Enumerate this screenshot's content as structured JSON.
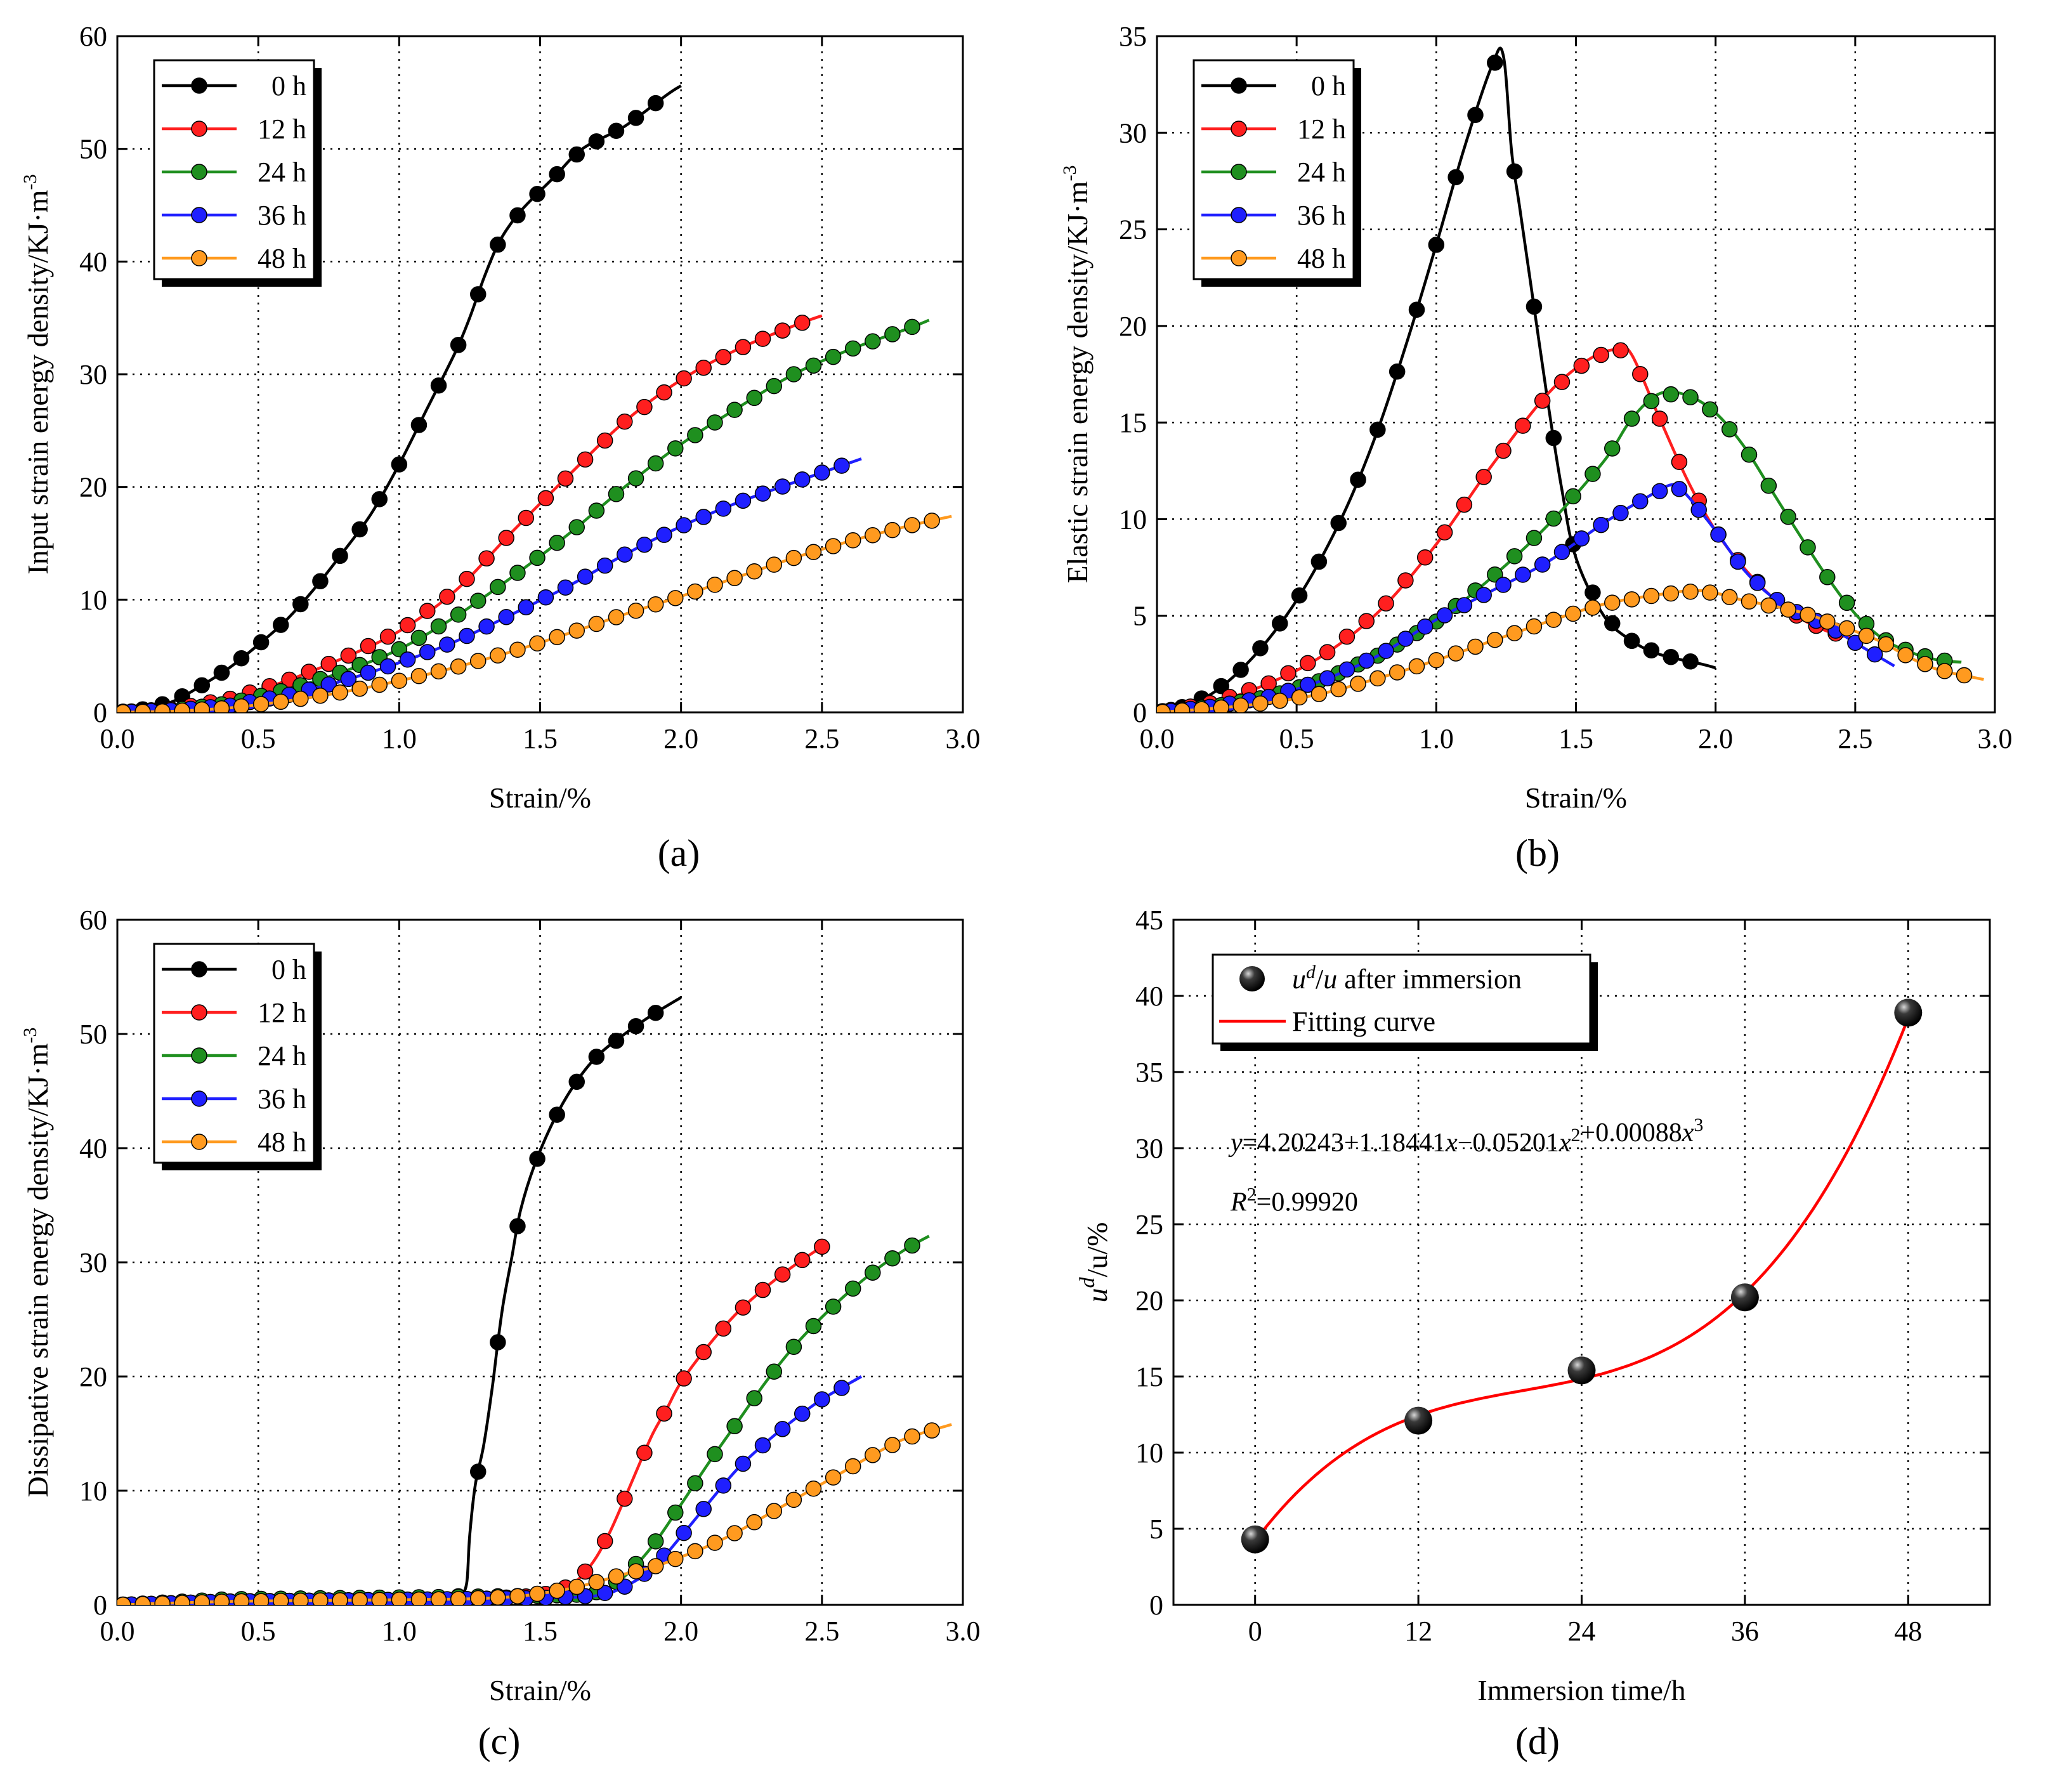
{
  "colors": {
    "0 h": "#000000",
    "12 h": "#ff1f1f",
    "24 h": "#1f8f1f",
    "36 h": "#1f1fff",
    "48 h": "#ff9a1f",
    "fit": "#ff0000"
  },
  "chart_data": [
    {
      "type": "line",
      "panel_label": "(a)",
      "xlabel": "Strain/%",
      "ylabel": "Input strain energy density/KJ·m",
      "ylabel_sup": "-3",
      "xlim": [
        0,
        3.0
      ],
      "ylim": [
        0,
        60
      ],
      "xticks": [
        0,
        0.5,
        1.0,
        1.5,
        2.0,
        2.5,
        3.0
      ],
      "xtick_labels": [
        "0.0",
        "0.5",
        "1.0",
        "1.5",
        "2.0",
        "2.5",
        "3.0"
      ],
      "yticks": [
        0,
        10,
        20,
        30,
        40,
        50,
        60
      ],
      "ytick_labels": [
        "0",
        "10",
        "20",
        "30",
        "40",
        "50",
        "60"
      ],
      "grid": true,
      "legend_position": "top-left",
      "series": [
        {
          "name": "0 h",
          "x": [
            0,
            0.1,
            0.2,
            0.3,
            0.4,
            0.5,
            0.6,
            0.7,
            0.8,
            0.9,
            1.0,
            1.1,
            1.2,
            1.25,
            1.3,
            1.35,
            1.4,
            1.45,
            1.55,
            1.65,
            1.8,
            1.95,
            2.0
          ],
          "y": [
            0,
            0.3,
            1,
            2.4,
            4,
            6,
            8.2,
            11,
            14.2,
            17.6,
            22,
            27,
            32,
            35,
            38.5,
            41.5,
            43.5,
            45,
            47.5,
            50,
            52,
            54.8,
            55.6
          ]
        },
        {
          "name": "12 h",
          "x": [
            0,
            0.2,
            0.4,
            0.6,
            0.8,
            1.0,
            1.2,
            1.4,
            1.6,
            1.8,
            2.0,
            2.2,
            2.4,
            2.5
          ],
          "y": [
            0,
            0.3,
            1.2,
            2.8,
            4.8,
            7.2,
            10.8,
            16,
            21,
            25.8,
            29.5,
            32.2,
            34.3,
            35.2
          ]
        },
        {
          "name": "24 h",
          "x": [
            0,
            0.2,
            0.4,
            0.6,
            0.8,
            1.0,
            1.2,
            1.4,
            1.6,
            1.8,
            2.0,
            2.2,
            2.4,
            2.6,
            2.8,
            2.88
          ],
          "y": [
            0,
            0.2,
            0.8,
            2,
            3.6,
            5.6,
            8.5,
            12,
            15.8,
            20,
            23.8,
            27,
            30,
            32.2,
            34,
            34.8
          ]
        },
        {
          "name": "36 h",
          "x": [
            0,
            0.2,
            0.4,
            0.6,
            0.8,
            1.0,
            1.2,
            1.4,
            1.6,
            1.8,
            2.0,
            2.2,
            2.4,
            2.64
          ],
          "y": [
            0,
            0.2,
            0.6,
            1.5,
            2.8,
            4.4,
            6.3,
            8.7,
            11.2,
            14,
            16.5,
            18.6,
            20.4,
            22.5
          ]
        },
        {
          "name": "48 h",
          "x": [
            0,
            0.2,
            0.4,
            0.6,
            0.8,
            1.0,
            1.2,
            1.4,
            1.6,
            1.8,
            2.0,
            2.2,
            2.4,
            2.6,
            2.8,
            2.96
          ],
          "y": [
            0,
            0.1,
            0.4,
            1,
            1.8,
            2.8,
            4,
            5.4,
            7,
            8.7,
            10.3,
            12,
            13.7,
            15.2,
            16.5,
            17.4
          ]
        }
      ]
    },
    {
      "type": "line",
      "panel_label": "(b)",
      "xlabel": "Strain/%",
      "ylabel": "Elastic strain energy density/KJ·m",
      "ylabel_sup": "-3",
      "xlim": [
        0,
        3.0
      ],
      "ylim": [
        0,
        35
      ],
      "xticks": [
        0,
        0.5,
        1.0,
        1.5,
        2.0,
        2.5,
        3.0
      ],
      "xtick_labels": [
        "0.0",
        "0.5",
        "1.0",
        "1.5",
        "2.0",
        "2.5",
        "3.0"
      ],
      "yticks": [
        0,
        5,
        10,
        15,
        20,
        25,
        30,
        35
      ],
      "ytick_labels": [
        "0",
        "5",
        "10",
        "15",
        "20",
        "25",
        "30",
        "35"
      ],
      "grid": true,
      "legend_position": "top-left",
      "series": [
        {
          "name": "0 h",
          "x": [
            0,
            0.1,
            0.2,
            0.3,
            0.4,
            0.5,
            0.6,
            0.7,
            0.8,
            0.9,
            1.0,
            1.1,
            1.2,
            1.24,
            1.27,
            1.3,
            1.35,
            1.4,
            1.45,
            1.5,
            1.6,
            1.7,
            1.8,
            1.95,
            2.0
          ],
          "y": [
            0,
            0.3,
            1,
            2.2,
            3.8,
            5.8,
            8.3,
            11.3,
            15,
            19.4,
            24.2,
            29.2,
            33.5,
            34,
            29,
            26,
            21,
            16,
            11.5,
            8,
            5,
            3.7,
            3,
            2.5,
            2.3
          ]
        },
        {
          "name": "12 h",
          "x": [
            0,
            0.2,
            0.4,
            0.6,
            0.8,
            1.0,
            1.2,
            1.4,
            1.55,
            1.65,
            1.7,
            1.8,
            1.9,
            2.0,
            2.1,
            2.2,
            2.3,
            2.4,
            2.5
          ],
          "y": [
            0,
            0.5,
            1.5,
            3,
            5.3,
            8.7,
            12.8,
            16.5,
            18.3,
            18.8,
            18.5,
            15.2,
            12,
            9.4,
            7.5,
            6,
            4.9,
            4.2,
            3.8
          ]
        },
        {
          "name": "24 h",
          "x": [
            0,
            0.2,
            0.4,
            0.6,
            0.8,
            1.0,
            1.2,
            1.4,
            1.6,
            1.7,
            1.8,
            1.9,
            2.0,
            2.1,
            2.2,
            2.3,
            2.4,
            2.5,
            2.6,
            2.7,
            2.8,
            2.88
          ],
          "y": [
            0,
            0.3,
            0.8,
            1.7,
            3,
            4.7,
            7,
            9.7,
            13,
            15.2,
            16.5,
            16.4,
            15.5,
            13.8,
            11.5,
            9.2,
            7,
            5.1,
            3.8,
            3.1,
            2.7,
            2.6
          ]
        },
        {
          "name": "36 h",
          "x": [
            0,
            0.2,
            0.4,
            0.6,
            0.8,
            1.0,
            1.2,
            1.4,
            1.6,
            1.75,
            1.85,
            1.9,
            2.0,
            2.1,
            2.2,
            2.3,
            2.4,
            2.5,
            2.64
          ],
          "y": [
            0,
            0.3,
            0.8,
            1.7,
            3,
            4.8,
            6.3,
            7.8,
            9.8,
            11.1,
            11.8,
            11.2,
            9.4,
            7.4,
            6,
            5.1,
            4.5,
            3.6,
            2.4
          ]
        },
        {
          "name": "48 h",
          "x": [
            0,
            0.2,
            0.4,
            0.6,
            0.8,
            1.0,
            1.2,
            1.4,
            1.6,
            1.8,
            1.95,
            2.1,
            2.3,
            2.5,
            2.6,
            2.7,
            2.8,
            2.96
          ],
          "y": [
            0,
            0.2,
            0.5,
            1,
            1.8,
            2.7,
            3.7,
            4.7,
            5.6,
            6.1,
            6.3,
            5.8,
            5.2,
            4.2,
            3.6,
            2.8,
            2.2,
            1.7
          ]
        }
      ]
    },
    {
      "type": "line",
      "panel_label": "(c)",
      "xlabel": "Strain/%",
      "ylabel": "Dissipative strain energy density/KJ·m",
      "ylabel_sup": "-3",
      "xlim": [
        0,
        3.0
      ],
      "ylim": [
        0,
        60
      ],
      "xticks": [
        0,
        0.5,
        1.0,
        1.5,
        2.0,
        2.5,
        3.0
      ],
      "xtick_labels": [
        "0.0",
        "0.5",
        "1.0",
        "1.5",
        "2.0",
        "2.5",
        "3.0"
      ],
      "yticks": [
        0,
        10,
        20,
        30,
        40,
        50,
        60
      ],
      "ytick_labels": [
        "0",
        "10",
        "20",
        "30",
        "40",
        "50",
        "60"
      ],
      "grid": true,
      "legend_position": "top-left",
      "series": [
        {
          "name": "0 h",
          "x": [
            0,
            0.2,
            0.4,
            0.6,
            0.8,
            1.0,
            1.1,
            1.2,
            1.22,
            1.24,
            1.25,
            1.27,
            1.3,
            1.33,
            1.35,
            1.37,
            1.4,
            1.43,
            1.48,
            1.55,
            1.62,
            1.7,
            1.8,
            1.9,
            2.0
          ],
          "y": [
            0,
            0.2,
            0.4,
            0.5,
            0.5,
            0.6,
            0.6,
            0.7,
            0.8,
            2,
            6,
            10.5,
            14,
            19,
            23,
            26.5,
            30.5,
            34.5,
            38.5,
            42.5,
            45.5,
            48,
            50,
            51.7,
            53.2
          ]
        },
        {
          "name": "12 h",
          "x": [
            0,
            0.4,
            0.8,
            1.2,
            1.5,
            1.6,
            1.65,
            1.7,
            1.75,
            1.8,
            1.85,
            1.9,
            1.95,
            2.0,
            2.1,
            2.2,
            2.3,
            2.4,
            2.52
          ],
          "y": [
            0,
            0.3,
            0.4,
            0.4,
            0.8,
            1.6,
            2.6,
            4.2,
            6.5,
            9.3,
            12.2,
            15,
            17.2,
            19.5,
            22.8,
            25.6,
            27.8,
            29.7,
            31.7
          ]
        },
        {
          "name": "24 h",
          "x": [
            0,
            0.4,
            0.8,
            1.2,
            1.5,
            1.65,
            1.72,
            1.8,
            1.9,
            2.0,
            2.1,
            2.2,
            2.3,
            2.4,
            2.5,
            2.6,
            2.7,
            2.8,
            2.88
          ],
          "y": [
            0,
            0.5,
            0.6,
            0.7,
            0.8,
            0.9,
            1.2,
            2.5,
            5.2,
            8.8,
            12.5,
            16,
            19.5,
            22.6,
            25.2,
            27.5,
            29.5,
            31.2,
            32.3
          ]
        },
        {
          "name": "36 h",
          "x": [
            0,
            0.4,
            0.8,
            1.2,
            1.5,
            1.7,
            1.8,
            1.9,
            2.0,
            2.1,
            2.2,
            2.3,
            2.4,
            2.5,
            2.64
          ],
          "y": [
            0,
            0.3,
            0.4,
            0.5,
            0.6,
            0.8,
            1.6,
            3.2,
            6,
            9,
            11.9,
            14.2,
            16.2,
            18,
            20
          ]
        },
        {
          "name": "48 h",
          "x": [
            0,
            0.4,
            0.8,
            1.2,
            1.4,
            1.5,
            1.6,
            1.7,
            1.8,
            1.9,
            2.0,
            2.1,
            2.2,
            2.3,
            2.4,
            2.5,
            2.6,
            2.7,
            2.8,
            2.96
          ],
          "y": [
            0,
            0.3,
            0.4,
            0.5,
            0.7,
            1,
            1.4,
            2,
            2.7,
            3.3,
            4.2,
            5.2,
            6.4,
            7.8,
            9.2,
            10.6,
            12,
            13.4,
            14.6,
            15.8
          ]
        }
      ]
    },
    {
      "type": "scatter",
      "panel_label": "(d)",
      "xlabel": "Immersion time/h",
      "ylabel": "u",
      "ylabel_sup": "d",
      "ylabel_rest": "/u/%",
      "xlim": [
        -6,
        54
      ],
      "ylim": [
        0,
        45
      ],
      "xticks": [
        0,
        12,
        24,
        36,
        48
      ],
      "xtick_labels": [
        "0",
        "12",
        "24",
        "36",
        "48"
      ],
      "yticks": [
        0,
        5,
        10,
        15,
        20,
        25,
        30,
        35,
        40,
        45
      ],
      "ytick_labels": [
        "0",
        "5",
        "10",
        "15",
        "20",
        "25",
        "30",
        "35",
        "40",
        "45"
      ],
      "grid": true,
      "legend_position": "top-left",
      "legend": {
        "points_pre": "u",
        "points_sup": "d",
        "points_post": "/u after immersion",
        "fit": "Fitting curve"
      },
      "points": {
        "x": [
          0,
          12,
          24,
          36,
          48
        ],
        "y": [
          4.3,
          12.1,
          15.4,
          20.2,
          38.9
        ]
      },
      "fit": {
        "coefficients": [
          4.20243,
          1.18441,
          -0.05201,
          0.00088
        ],
        "x_range": [
          0,
          48
        ]
      },
      "annotation_equation": {
        "parts": [
          {
            "t": "y",
            "italic": true
          },
          {
            "t": "=4.20243+1.18441"
          },
          {
            "t": "x",
            "italic": true
          },
          {
            "t": "−0.05201"
          },
          {
            "t": "x",
            "italic": true
          },
          {
            "t": "2",
            "sup": true
          },
          {
            "t": "+0.00088"
          },
          {
            "t": "x",
            "italic": true
          },
          {
            "t": "3",
            "sup": true
          }
        ]
      },
      "annotation_r2": {
        "pre": "R",
        "sup": "2",
        "post": "=0.99920"
      }
    }
  ]
}
